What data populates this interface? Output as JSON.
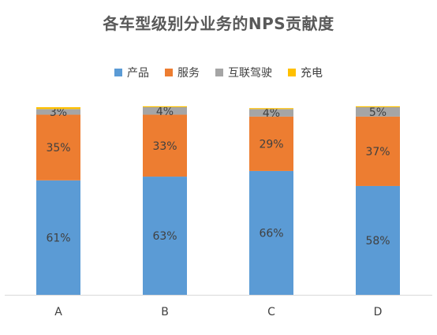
{
  "chart_data": {
    "type": "bar",
    "stacked": true,
    "percent_stacked": true,
    "title": "各车型级别分业务的NPS贡献度",
    "xlabel": "",
    "ylabel": "",
    "ylim": [
      0,
      100
    ],
    "grid": false,
    "legend_position": "top",
    "categories": [
      "A",
      "B",
      "C",
      "D"
    ],
    "series": [
      {
        "name": "产品",
        "color": "#5B9BD5",
        "values": [
          61,
          63,
          66,
          58
        ],
        "labels": [
          "61%",
          "63%",
          "66%",
          "58%"
        ]
      },
      {
        "name": "服务",
        "color": "#ED7D31",
        "values": [
          35,
          33,
          29,
          37
        ],
        "labels": [
          "35%",
          "33%",
          "29%",
          "37%"
        ]
      },
      {
        "name": "互联驾驶",
        "color": "#A5A5A5",
        "values": [
          3,
          4,
          4,
          5
        ],
        "labels": [
          "3%",
          "4%",
          "4%",
          "5%"
        ]
      },
      {
        "name": "充电",
        "color": "#FFC000",
        "values": [
          1,
          0.5,
          0.5,
          0.5
        ],
        "labels": [
          "",
          "",
          "",
          ""
        ]
      }
    ]
  }
}
